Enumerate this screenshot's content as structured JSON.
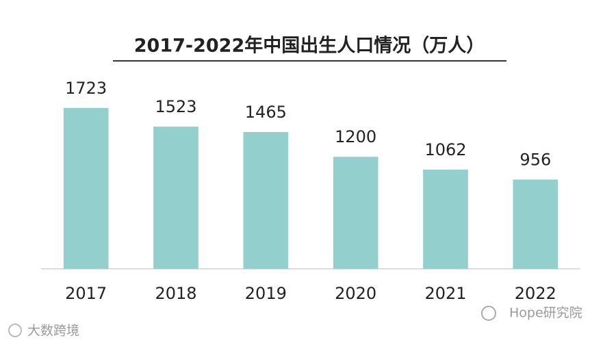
{
  "chart_data": {
    "type": "bar",
    "title": "2017-2022年中国出生人口情况（万人）",
    "categories": [
      "2017",
      "2018",
      "2019",
      "2020",
      "2021",
      "2022"
    ],
    "values": [
      1723,
      1523,
      1465,
      1200,
      1062,
      956
    ],
    "color": "#93cfcd",
    "ylim": [
      0,
      2000
    ],
    "annotations": [
      "大数跨境",
      "Hope研究院"
    ]
  }
}
